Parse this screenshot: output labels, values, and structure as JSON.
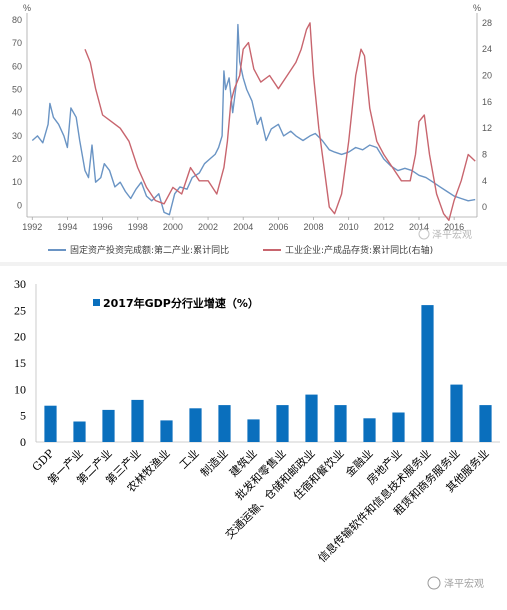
{
  "watermarks": {
    "top": "泽平宏观",
    "bottom": "泽平宏观"
  },
  "chart_data": [
    {
      "type": "line",
      "x_ticks": [
        "1992",
        "1994",
        "1996",
        "1998",
        "2000",
        "2002",
        "2004",
        "2006",
        "2008",
        "2010",
        "2012",
        "2014",
        "2016"
      ],
      "xlim": [
        1991.7,
        2017.3
      ],
      "left_axis": {
        "unit": "%",
        "ticks": [
          "0",
          "10",
          "20",
          "30",
          "40",
          "50",
          "60",
          "70",
          "80"
        ],
        "ylim": [
          -5,
          83
        ]
      },
      "right_axis": {
        "unit": "%",
        "ticks": [
          "0",
          "4",
          "8",
          "12",
          "16",
          "20",
          "24",
          "28"
        ],
        "ylim": [
          -1.5,
          29.5
        ]
      },
      "grid": false,
      "legend_position": "bottom",
      "series": [
        {
          "name": "固定资产投资完成额:第二产业:累计同比",
          "axis": "left",
          "color": "#6a94c4",
          "points": [
            [
              1992.0,
              28
            ],
            [
              1992.3,
              30
            ],
            [
              1992.6,
              27
            ],
            [
              1992.9,
              35
            ],
            [
              1993.0,
              44
            ],
            [
              1993.2,
              38
            ],
            [
              1993.5,
              35
            ],
            [
              1993.8,
              30
            ],
            [
              1994.0,
              25
            ],
            [
              1994.2,
              42
            ],
            [
              1994.5,
              38
            ],
            [
              1994.7,
              28
            ],
            [
              1995.0,
              15
            ],
            [
              1995.2,
              12
            ],
            [
              1995.4,
              26
            ],
            [
              1995.6,
              10
            ],
            [
              1995.9,
              12
            ],
            [
              1996.1,
              18
            ],
            [
              1996.4,
              15
            ],
            [
              1996.7,
              8
            ],
            [
              1997.0,
              10
            ],
            [
              1997.3,
              6
            ],
            [
              1997.6,
              3
            ],
            [
              1997.9,
              7
            ],
            [
              1998.2,
              10
            ],
            [
              1998.5,
              4
            ],
            [
              1998.8,
              2
            ],
            [
              1999.2,
              5
            ],
            [
              1999.5,
              -3
            ],
            [
              1999.8,
              -4
            ],
            [
              2000.1,
              5
            ],
            [
              2000.4,
              8
            ],
            [
              2000.8,
              7
            ],
            [
              2001.1,
              12
            ],
            [
              2001.5,
              14
            ],
            [
              2001.8,
              18
            ],
            [
              2002.1,
              20
            ],
            [
              2002.4,
              22
            ],
            [
              2002.6,
              25
            ],
            [
              2002.8,
              30
            ],
            [
              2002.9,
              58
            ],
            [
              2003.0,
              50
            ],
            [
              2003.2,
              55
            ],
            [
              2003.4,
              40
            ],
            [
              2003.6,
              52
            ],
            [
              2003.7,
              78
            ],
            [
              2003.8,
              62
            ],
            [
              2004.0,
              55
            ],
            [
              2004.2,
              50
            ],
            [
              2004.5,
              45
            ],
            [
              2004.8,
              35
            ],
            [
              2005.0,
              38
            ],
            [
              2005.3,
              28
            ],
            [
              2005.6,
              33
            ],
            [
              2006.0,
              35
            ],
            [
              2006.3,
              30
            ],
            [
              2006.7,
              32
            ],
            [
              2007.0,
              30
            ],
            [
              2007.4,
              28
            ],
            [
              2007.8,
              30
            ],
            [
              2008.1,
              31
            ],
            [
              2008.5,
              28
            ],
            [
              2008.9,
              24
            ],
            [
              2009.2,
              23
            ],
            [
              2009.6,
              22
            ],
            [
              2010.0,
              23
            ],
            [
              2010.4,
              25
            ],
            [
              2010.8,
              24
            ],
            [
              2011.2,
              26
            ],
            [
              2011.6,
              25
            ],
            [
              2012.0,
              20
            ],
            [
              2012.4,
              17
            ],
            [
              2012.8,
              15
            ],
            [
              2013.2,
              16
            ],
            [
              2013.6,
              15
            ],
            [
              2014.0,
              13
            ],
            [
              2014.4,
              12
            ],
            [
              2014.8,
              10
            ],
            [
              2015.2,
              8
            ],
            [
              2015.6,
              6
            ],
            [
              2016.0,
              4
            ],
            [
              2016.4,
              3
            ],
            [
              2016.8,
              2
            ],
            [
              2017.2,
              2.5
            ]
          ]
        },
        {
          "name": "工业企业:产成品存货:累计同比(右轴)",
          "axis": "right",
          "color": "#c8656e",
          "points": [
            [
              1995.0,
              24
            ],
            [
              1995.3,
              22
            ],
            [
              1995.6,
              18
            ],
            [
              1996.0,
              14
            ],
            [
              1996.5,
              13
            ],
            [
              1997.0,
              12
            ],
            [
              1997.5,
              10
            ],
            [
              1998.0,
              6
            ],
            [
              1998.5,
              3
            ],
            [
              1999.0,
              1
            ],
            [
              1999.5,
              0.5
            ],
            [
              2000.0,
              3
            ],
            [
              2000.5,
              2
            ],
            [
              2001.0,
              6
            ],
            [
              2001.5,
              4
            ],
            [
              2002.0,
              4
            ],
            [
              2002.5,
              2
            ],
            [
              2002.9,
              6
            ],
            [
              2003.1,
              10
            ],
            [
              2003.3,
              16
            ],
            [
              2003.5,
              18
            ],
            [
              2003.8,
              20
            ],
            [
              2004.0,
              24
            ],
            [
              2004.3,
              25
            ],
            [
              2004.6,
              21
            ],
            [
              2005.0,
              19
            ],
            [
              2005.5,
              20
            ],
            [
              2006.0,
              18
            ],
            [
              2006.5,
              20
            ],
            [
              2007.0,
              22
            ],
            [
              2007.3,
              24
            ],
            [
              2007.6,
              27
            ],
            [
              2007.8,
              28
            ],
            [
              2008.0,
              20
            ],
            [
              2008.3,
              12
            ],
            [
              2008.6,
              6
            ],
            [
              2008.9,
              0
            ],
            [
              2009.2,
              -1
            ],
            [
              2009.6,
              2
            ],
            [
              2010.0,
              10
            ],
            [
              2010.4,
              20
            ],
            [
              2010.7,
              24
            ],
            [
              2010.9,
              23
            ],
            [
              2011.2,
              15
            ],
            [
              2011.6,
              10
            ],
            [
              2012.0,
              8
            ],
            [
              2012.5,
              6
            ],
            [
              2013.0,
              4
            ],
            [
              2013.5,
              4
            ],
            [
              2013.8,
              8
            ],
            [
              2014.0,
              13
            ],
            [
              2014.3,
              14
            ],
            [
              2014.6,
              8
            ],
            [
              2015.0,
              2
            ],
            [
              2015.4,
              -1
            ],
            [
              2015.7,
              -2
            ],
            [
              2016.0,
              1
            ],
            [
              2016.4,
              4
            ],
            [
              2016.8,
              8
            ],
            [
              2017.2,
              7
            ]
          ]
        }
      ]
    },
    {
      "type": "bar",
      "title": "2017年GDP分行业增速（%）",
      "color": "#0a6fbd",
      "ylim": [
        0,
        30
      ],
      "y_ticks": [
        "0",
        "5",
        "10",
        "15",
        "20",
        "25",
        "30"
      ],
      "categories": [
        "GDP",
        "第一产业",
        "第二产业",
        "第三产业",
        "农林牧渔业",
        "工业",
        "制造业",
        "建筑业",
        "批发和零售业",
        "交通运输、仓储和邮政业",
        "住宿和餐饮业",
        "金融业",
        "房地产业",
        "信息传输软件和信息技术服务业",
        "租赁和商务服务业",
        "其他服务业"
      ],
      "values": [
        6.9,
        3.9,
        6.1,
        8.0,
        4.1,
        6.4,
        7.0,
        4.3,
        7.0,
        9.0,
        7.0,
        4.5,
        5.6,
        26.0,
        10.9,
        7.0
      ],
      "grid": false,
      "legend_position": "top-left"
    }
  ]
}
